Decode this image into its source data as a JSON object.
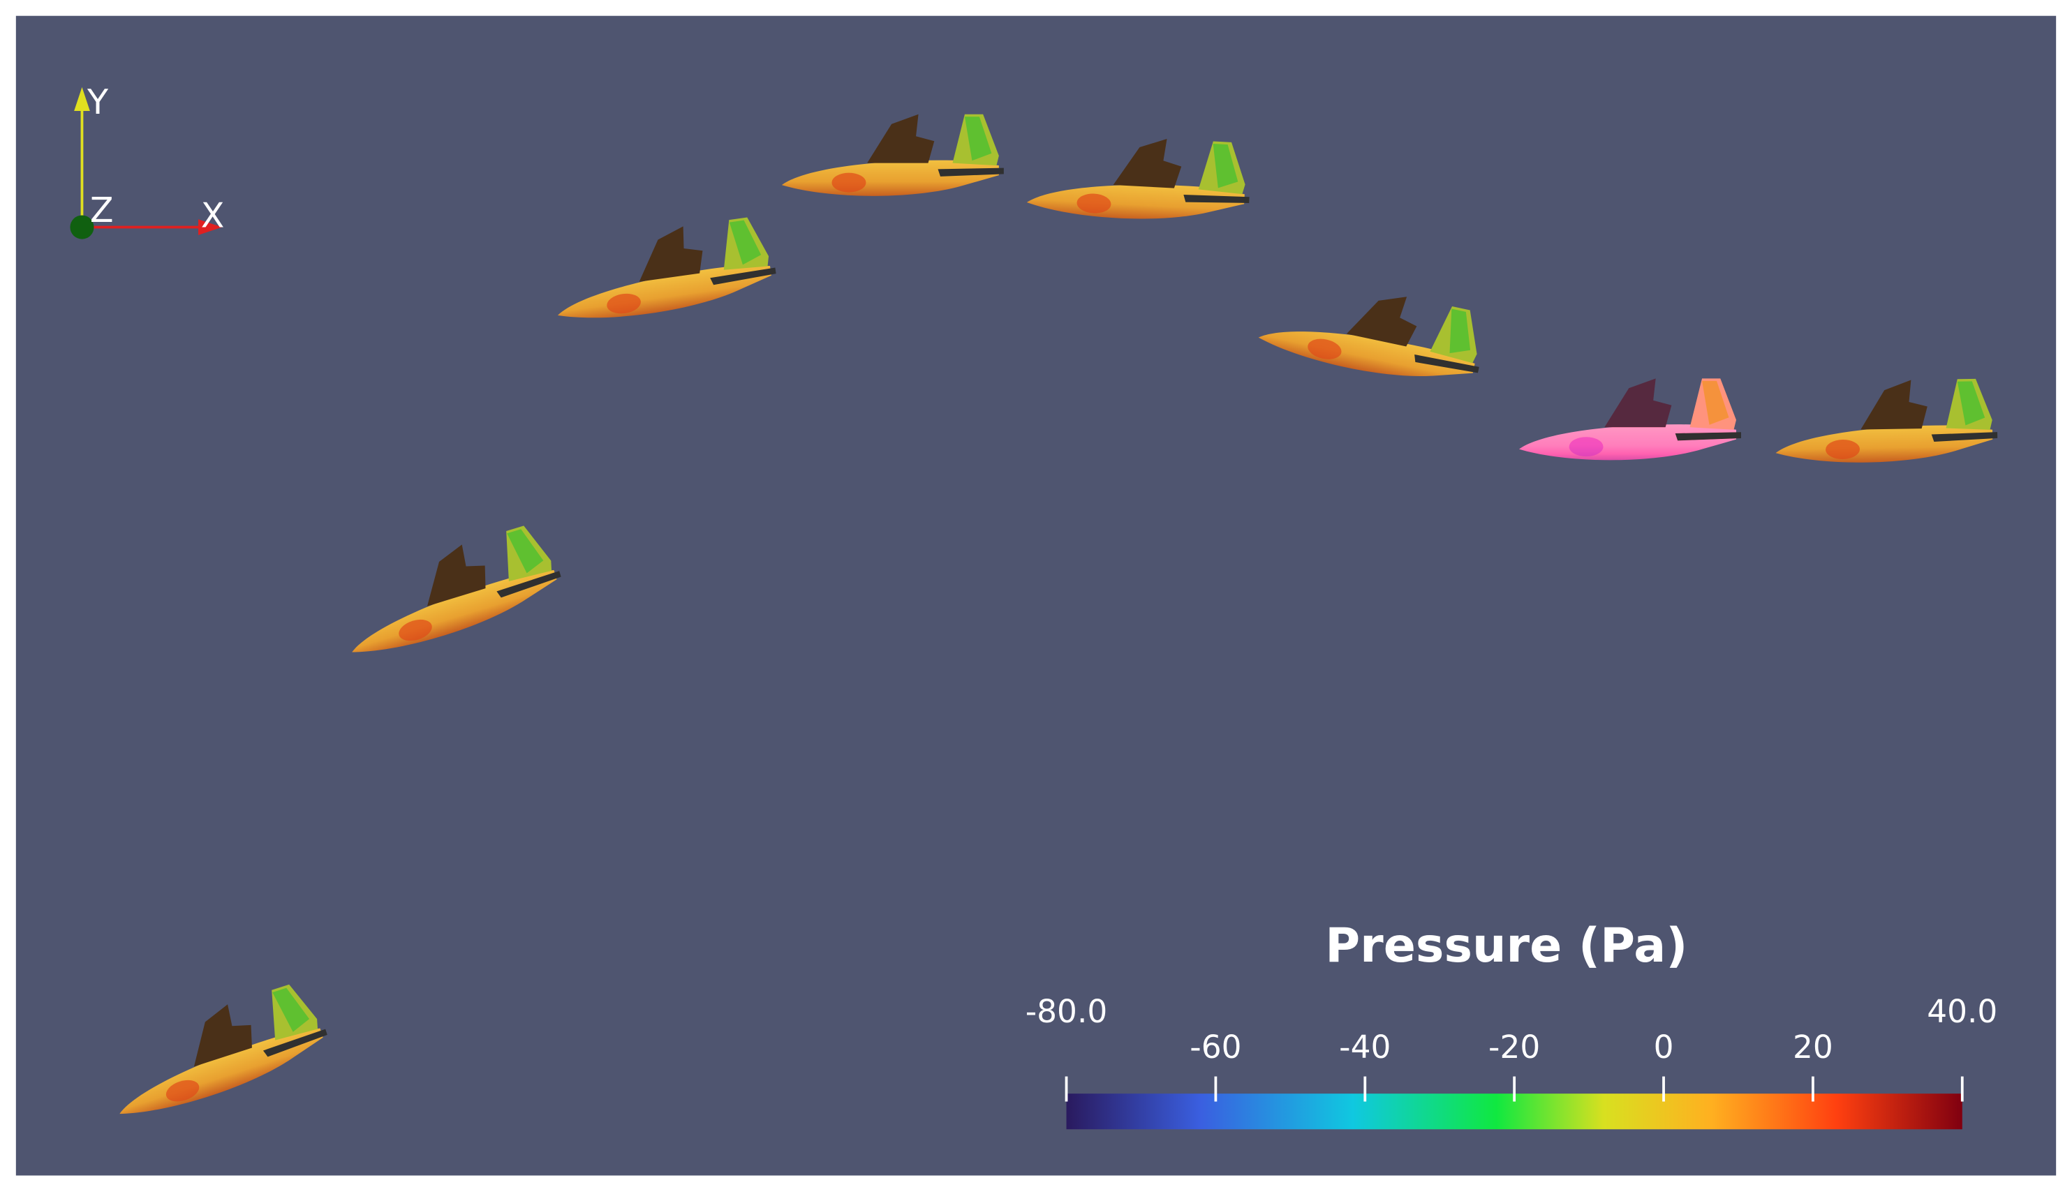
{
  "axes_widget": {
    "y_label": "Y",
    "z_label": "Z",
    "x_label": "X"
  },
  "color_bar": {
    "title": "Pressure (Pa)",
    "range": [
      {
        "value": -80,
        "label": "-80.0"
      },
      {
        "value": 40,
        "label": "40.0"
      }
    ],
    "ticks": [
      -60,
      -40,
      -20,
      0,
      20
    ]
  }
}
